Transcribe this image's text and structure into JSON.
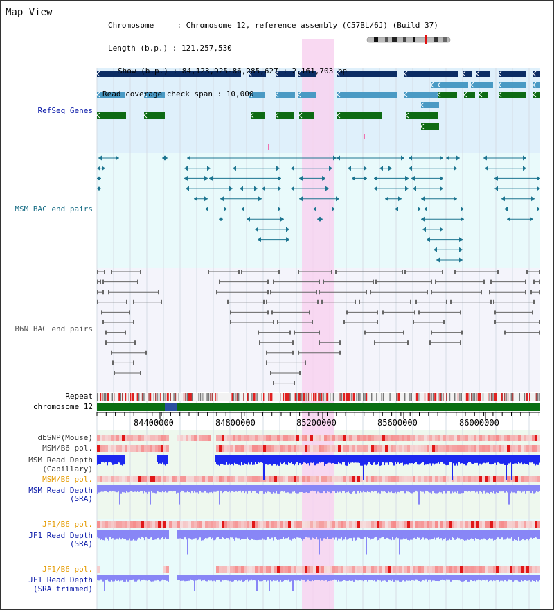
{
  "title": "Map View",
  "header": {
    "chromosome_line": "Chromosome     : Chromosome 12, reference assembly (C57BL/6J) (Build 37)",
    "length_line": "Length (b.p.) : 121,257,530",
    "show_line": "Show (b.p.) : 84,123,925-86,285,627 : 2,161,703 bp",
    "coverage_line": "Read coverage check span : 10,000"
  },
  "tracks": {
    "refseq": "RefSeq Genes",
    "msm_bac": "MSM BAC end pairs",
    "b6n_bac": "B6N BAC end pairs",
    "repeat": "Repeat",
    "chromosome": "chromosome 12",
    "dbsnp": "dbSNP(Mouse)",
    "msm_b6_pol_1": "MSM/B6 pol.",
    "msm_read_depth_cap_1": "MSM Read Depth",
    "msm_read_depth_cap_2": "(Capillary)",
    "msm_b6_pol_2": "MSM/B6 pol.",
    "msm_read_depth_sra_1": "MSM Read Depth",
    "msm_read_depth_sra_2": "(SRA)",
    "jf1_b6_pol_1": "JF1/B6 pol.",
    "jf1_read_depth_sra_1": "JF1 Read Depth",
    "jf1_read_depth_sra_2": "(SRA)",
    "jf1_b6_pol_2": "JF1/B6 pol.",
    "jf1_read_depth_trim_1": "JF1 Read Depth",
    "jf1_read_depth_trim_2": "(SRA trimmed)"
  },
  "axis": {
    "ticks": [
      "84400000",
      "84800000",
      "85200000",
      "85600000",
      "86000000"
    ]
  },
  "colors": {
    "refseq_dark": "#0c2d64",
    "refseq_light": "#4a9ac4",
    "refseq_green": "#0e6b14",
    "msm_bac": "#1d7590",
    "b6n_bac": "#666666",
    "highlight": "#f8d2f0",
    "chromosome_bar": "#0a6e12",
    "depth_blue": "#1c28f0",
    "depth_lilac": "#8886f6",
    "label_blue": "#0a1aa8",
    "label_orange": "#e49a00",
    "label_teal": "#1a6e86"
  },
  "icons": {
    "ideogram": "chromosome-ideogram"
  }
}
